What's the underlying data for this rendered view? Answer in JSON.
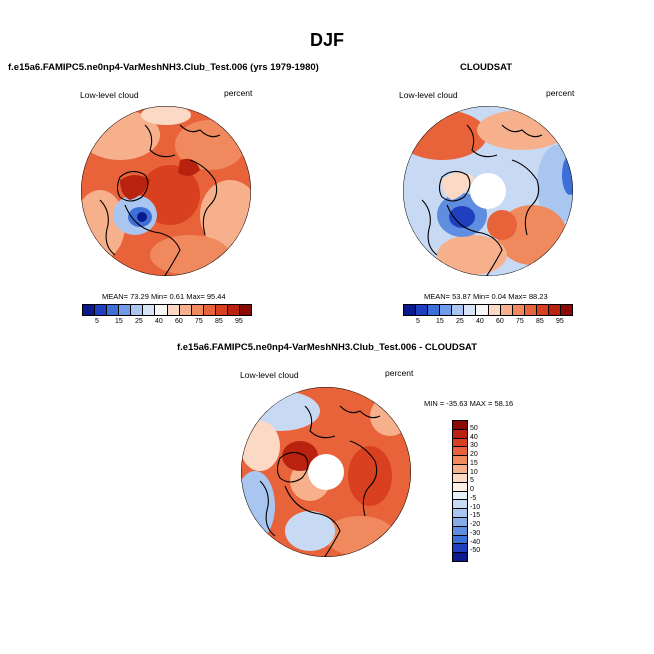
{
  "main_title": "DJF",
  "panel_model": {
    "title": "f.e15a6.FAMIPC5.ne0np4-VarMeshNH3.Club_Test.006 (yrs 1979-1980)",
    "left_label": "Low-level cloud",
    "right_label": "percent",
    "stats": "MEAN=  73.29  Min=   0.61  Max=  95.44"
  },
  "panel_obs": {
    "title": "CLOUDSAT",
    "left_label": "Low-level cloud",
    "right_label": "percent",
    "stats": "MEAN=  53.87  Min=   0.04  Max=  88.23"
  },
  "panel_diff": {
    "title": "f.e15a6.FAMIPC5.ne0np4-VarMeshNH3.Club_Test.006 - CLOUDSAT",
    "left_label": "Low-level cloud",
    "right_label": "percent",
    "stats": "MIN = -35.63 MAX =  58.16"
  },
  "colorbar_abs": {
    "labels": [
      "5",
      "15",
      "25",
      "40",
      "60",
      "75",
      "85",
      "95"
    ],
    "colors": [
      "#0a1a8c",
      "#1f3fbf",
      "#3d6fd9",
      "#6f9be8",
      "#a9c6f0",
      "#d6e4f5",
      "#f7f7f7",
      "#fbd9c4",
      "#f7b08c",
      "#f08a5e",
      "#e8623a",
      "#d8401f",
      "#b8220f",
      "#8c0a05"
    ]
  },
  "colorbar_diff": {
    "labels": [
      "50",
      "40",
      "30",
      "20",
      "15",
      "10",
      "5",
      "0",
      "-5",
      "-10",
      "-15",
      "-20",
      "-30",
      "-40",
      "-50"
    ],
    "colors": [
      "#8c0a05",
      "#b8220f",
      "#d8401f",
      "#e8623a",
      "#f08a5e",
      "#f7b08c",
      "#fbd9c4",
      "#fdf0e8",
      "#e8f0fa",
      "#c8daf3",
      "#a9c6f0",
      "#86ace8",
      "#5f8ee0",
      "#3d6fd9",
      "#1f3fbf",
      "#0a1a8c"
    ]
  }
}
